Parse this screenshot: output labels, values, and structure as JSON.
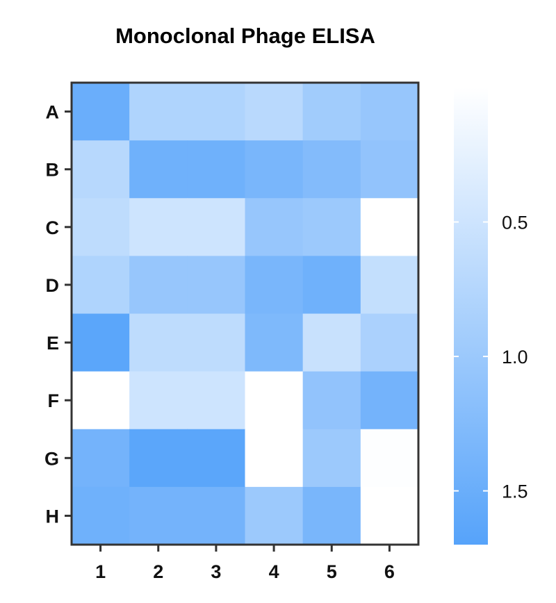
{
  "chart_data": {
    "type": "heatmap",
    "title": "Monoclonal Phage ELISA",
    "xlabel": "",
    "ylabel": "",
    "columns": [
      "1",
      "2",
      "3",
      "4",
      "5",
      "6"
    ],
    "rows": [
      "A",
      "B",
      "C",
      "D",
      "E",
      "F",
      "G",
      "H"
    ],
    "values": [
      [
        1.5,
        0.8,
        0.8,
        0.7,
        0.95,
        1.05
      ],
      [
        0.72,
        1.45,
        1.45,
        1.35,
        1.25,
        1.1
      ],
      [
        0.65,
        0.5,
        0.5,
        1.05,
        1.0,
        0.0
      ],
      [
        0.8,
        1.05,
        1.05,
        1.35,
        1.45,
        0.6
      ],
      [
        1.65,
        0.65,
        0.65,
        1.3,
        0.55,
        0.85
      ],
      [
        0.0,
        0.5,
        0.5,
        0.0,
        1.1,
        1.4
      ],
      [
        1.4,
        1.65,
        1.65,
        0.0,
        1.0,
        0.02
      ],
      [
        1.45,
        1.4,
        1.4,
        1.0,
        1.35,
        0.0
      ]
    ],
    "colorbar": {
      "min": 0.0,
      "max": 1.7,
      "ticks": [
        0.5,
        1.0,
        1.5
      ],
      "tick_labels": [
        "0.5",
        "1.0",
        "1.5"
      ],
      "low_color": "#ffffff",
      "high_color": "#56a3fa"
    },
    "grid": false,
    "legend": "right"
  }
}
